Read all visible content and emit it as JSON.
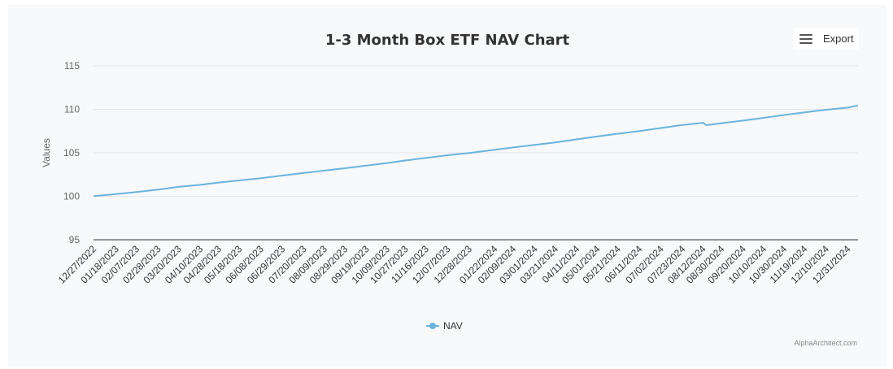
{
  "toolbar": {
    "export_label": "Export"
  },
  "credits": "AlphaArchitect.com",
  "chart_data": {
    "type": "line",
    "title": "1-3 Month Box ETF NAV Chart",
    "xlabel": "",
    "ylabel": "Values",
    "ylim": [
      95,
      115
    ],
    "yticks": [
      95,
      100,
      105,
      110,
      115
    ],
    "grid": true,
    "legend": {
      "position": "bottom-center",
      "entries": [
        "NAV"
      ]
    },
    "x_tick_labels": [
      "12/27/2022",
      "01/18/2023",
      "02/07/2023",
      "02/28/2023",
      "03/20/2023",
      "04/10/2023",
      "04/28/2023",
      "05/18/2023",
      "06/08/2023",
      "06/29/2023",
      "07/20/2023",
      "08/09/2023",
      "08/29/2023",
      "09/19/2023",
      "10/09/2023",
      "10/27/2023",
      "11/16/2023",
      "12/07/2023",
      "12/28/2023",
      "01/22/2024",
      "02/09/2024",
      "03/01/2024",
      "03/21/2024",
      "04/11/2024",
      "05/01/2024",
      "05/21/2024",
      "06/11/2024",
      "07/02/2024",
      "07/23/2024",
      "08/12/2024",
      "08/30/2024",
      "09/20/2024",
      "10/10/2024",
      "10/30/2024",
      "11/19/2024",
      "12/10/2024",
      "12/31/2024"
    ],
    "series": [
      {
        "name": "NAV",
        "color": "#6bb3de",
        "x": [
          "12/27/2022",
          "01/18/2023",
          "02/07/2023",
          "02/28/2023",
          "03/20/2023",
          "04/10/2023",
          "04/28/2023",
          "05/18/2023",
          "06/08/2023",
          "06/29/2023",
          "07/20/2023",
          "08/09/2023",
          "08/29/2023",
          "09/19/2023",
          "10/09/2023",
          "10/27/2023",
          "11/16/2023",
          "12/07/2023",
          "12/28/2023",
          "01/22/2024",
          "02/09/2024",
          "03/01/2024",
          "03/21/2024",
          "04/11/2024",
          "05/01/2024",
          "05/21/2024",
          "06/11/2024",
          "07/02/2024",
          "07/23/2024",
          "08/12/2024",
          "08/15/2024",
          "08/30/2024",
          "09/20/2024",
          "10/10/2024",
          "10/30/2024",
          "11/19/2024",
          "12/10/2024",
          "12/31/2024",
          "01/10/2025"
        ],
        "values": [
          100.02,
          100.25,
          100.5,
          100.78,
          101.08,
          101.32,
          101.58,
          101.82,
          102.08,
          102.38,
          102.68,
          102.95,
          103.22,
          103.52,
          103.82,
          104.12,
          104.42,
          104.72,
          104.98,
          105.35,
          105.62,
          105.92,
          106.2,
          106.55,
          106.88,
          107.2,
          107.5,
          107.85,
          108.2,
          108.45,
          108.18,
          108.4,
          108.7,
          109.02,
          109.35,
          109.65,
          109.95,
          110.2,
          110.45
        ]
      }
    ]
  }
}
